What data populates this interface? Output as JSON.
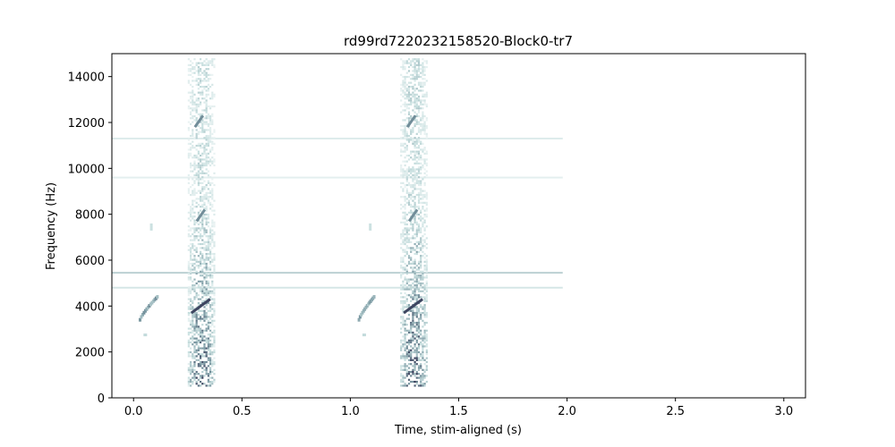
{
  "chart_data": {
    "type": "heatmap",
    "title": "rd99rd7220232158520-Block0-tr7",
    "xlabel": "Time, stim-aligned (s)",
    "ylabel": "Frequency (Hz)",
    "xlim": [
      -0.1,
      3.1
    ],
    "ylim": [
      0,
      15000
    ],
    "xticks": [
      0.0,
      0.5,
      1.0,
      1.5,
      2.0,
      2.5,
      3.0
    ],
    "xtick_labels": [
      "0.0",
      "0.5",
      "1.0",
      "1.5",
      "2.0",
      "2.5",
      "3.0"
    ],
    "yticks": [
      0,
      2000,
      4000,
      6000,
      8000,
      10000,
      12000,
      14000
    ],
    "ytick_labels": [
      "0",
      "2000",
      "4000",
      "6000",
      "8000",
      "10000",
      "12000",
      "14000"
    ],
    "grid": false,
    "colormap": "bone_r",
    "data_extent_s": [
      -0.1,
      1.98
    ],
    "noise_bands_hz": [
      {
        "frequency": 11300,
        "intensity": 0.25
      },
      {
        "frequency": 9600,
        "intensity": 0.2
      },
      {
        "frequency": 5450,
        "intensity": 0.45
      },
      {
        "frequency": 4800,
        "intensity": 0.3
      }
    ],
    "vocalizations": [
      {
        "t_start": 0.25,
        "t_end": 0.37,
        "f_low": 500,
        "f_high": 14800,
        "intensity": 0.85
      },
      {
        "t_start": 1.23,
        "t_end": 1.35,
        "f_low": 500,
        "f_high": 14800,
        "intensity": 0.9
      }
    ],
    "chirps": [
      {
        "t_start": 0.03,
        "t_end": 0.11,
        "f_start": 3400,
        "f_end": 4400,
        "intensity": 0.65
      },
      {
        "t_start": 1.04,
        "t_end": 1.11,
        "f_start": 3400,
        "f_end": 4400,
        "intensity": 0.6
      }
    ]
  }
}
